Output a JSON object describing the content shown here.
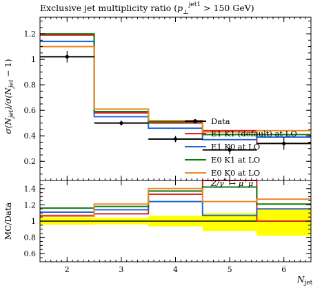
{
  "chart_data": [
    {
      "type": "line",
      "panel": "main",
      "title": "Exclusive jet multiplicity ratio (p⊥jet1 > 150 GeV)",
      "title_parts": {
        "pre": "Exclusive jet multiplicity ratio (",
        "p": "p",
        "perp": "⊥",
        "sup": "jet1",
        "post": " > 150 GeV)"
      },
      "ylabel": "σ(Njet)/σ(Njet − 1)",
      "ylabel_parts": {
        "a": "σ(N",
        "b": "jet",
        "c": ")/σ(N",
        "d": "jet",
        "e": " − 1)"
      },
      "xlim": [
        1.5,
        6.5
      ],
      "ylim": [
        0.05,
        1.33
      ],
      "yticks": [
        {
          "v": 0.2,
          "label": "0.2"
        },
        {
          "v": 0.4,
          "label": "0.4"
        },
        {
          "v": 0.6,
          "label": "0.6"
        },
        {
          "v": 0.8,
          "label": "0.8"
        },
        {
          "v": 1.0,
          "label": "1"
        },
        {
          "v": 1.2,
          "label": "1.2"
        }
      ],
      "bin_edges": [
        1.5,
        2.5,
        3.5,
        4.5,
        5.5,
        6.5
      ],
      "data_points": {
        "name": "Data",
        "x": [
          2,
          3,
          4,
          5,
          6
        ],
        "xerr": [
          0.5,
          0.5,
          0.5,
          0.5,
          0.5
        ],
        "y": [
          1.02,
          0.5,
          0.375,
          0.29,
          0.34
        ],
        "yerr": [
          0.045,
          0.02,
          0.025,
          0.035,
          0.05
        ]
      },
      "series": [
        {
          "name": "E1 K1 (default) at LO",
          "color": "#dd2222",
          "values": [
            1.19,
            0.58,
            0.5,
            0.44,
            0.34
          ]
        },
        {
          "name": "E1 K0 at LO",
          "color": "#2266dd",
          "values": [
            1.14,
            0.55,
            0.46,
            0.37,
            0.39
          ]
        },
        {
          "name": "E0 K1 at LO",
          "color": "#117711",
          "values": [
            1.2,
            0.59,
            0.51,
            0.41,
            0.41
          ]
        },
        {
          "name": "E0 K0 at LO",
          "color": "#ee8822",
          "values": [
            1.1,
            0.61,
            0.52,
            0.43,
            0.44
          ]
        }
      ],
      "legend": {
        "placement": "right",
        "data_label": "Data",
        "footer": {
          "z": "Z/γ",
          "star": "*",
          "arrow": " → μ",
          "plus": "+",
          "mu": "μ",
          "minus": "−"
        }
      }
    },
    {
      "type": "line",
      "panel": "ratio",
      "ylabel": "MC/Data",
      "xlabel": "Njet",
      "xlabel_parts": {
        "n": "N",
        "sub": "jet"
      },
      "xlim": [
        1.5,
        6.5
      ],
      "ylim": [
        0.5,
        1.5
      ],
      "xticks": [
        {
          "v": 2,
          "label": "2"
        },
        {
          "v": 3,
          "label": "3"
        },
        {
          "v": 4,
          "label": "4"
        },
        {
          "v": 5,
          "label": "5"
        },
        {
          "v": 6,
          "label": "6"
        }
      ],
      "yticks": [
        {
          "v": 0.6,
          "label": "0.6"
        },
        {
          "v": 0.8,
          "label": "0.8"
        },
        {
          "v": 1.0,
          "label": "1"
        },
        {
          "v": 1.2,
          "label": "1.2"
        },
        {
          "v": 1.4,
          "label": "1.4"
        }
      ],
      "band": {
        "color": "#ffff00",
        "lo": [
          0.955,
          0.96,
          0.935,
          0.88,
          0.82
        ],
        "hi": [
          1.045,
          1.04,
          1.065,
          1.1,
          1.16
        ]
      },
      "series": [
        {
          "name": "E1 K1 (default) at LO",
          "color": "#dd2222",
          "values": [
            1.07,
            1.09,
            1.33,
            1.5,
            1.0
          ]
        },
        {
          "name": "E1 K0 at LO",
          "color": "#2266dd",
          "values": [
            1.11,
            1.14,
            1.24,
            1.07,
            1.15
          ]
        },
        {
          "name": "E0 K1 at LO",
          "color": "#117711",
          "values": [
            1.16,
            1.18,
            1.37,
            1.42,
            1.21
          ]
        },
        {
          "name": "E0 K0 at LO",
          "color": "#ee8822",
          "values": [
            1.06,
            1.21,
            1.4,
            1.24,
            1.27
          ]
        }
      ]
    }
  ]
}
